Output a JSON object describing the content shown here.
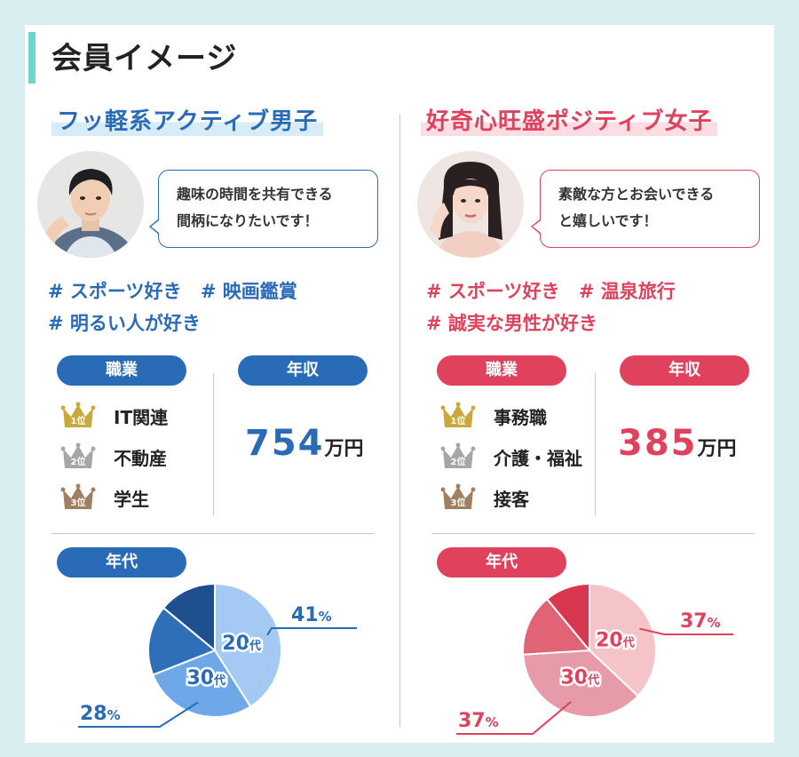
{
  "page_title": "会員イメージ",
  "male": {
    "heading": "フッ軽系アクティブ男子",
    "quote_line1": "趣味の時間を共有できる",
    "quote_line2": "間柄になりたいです！",
    "tags_line1": [
      "# スポーツ好き",
      "# 映画鑑賞"
    ],
    "tags_line2": [
      "# 明るい人が好き"
    ],
    "occupation_label": "職業",
    "income_label": "年収",
    "age_label": "年代",
    "ranks": [
      {
        "rank": "1位",
        "label": "IT関連"
      },
      {
        "rank": "2位",
        "label": "不動産"
      },
      {
        "rank": "3位",
        "label": "学生"
      }
    ],
    "income_value": "754",
    "income_unit": "万円",
    "accent_color": "#2a6bb8"
  },
  "female": {
    "heading": "好奇心旺盛ポジティブ女子",
    "quote_line1": "素敵な方とお会いできる",
    "quote_line2": "と嬉しいです！",
    "tags_line1": [
      "# スポーツ好き",
      "# 温泉旅行"
    ],
    "tags_line2": [
      "# 誠実な男性が好き"
    ],
    "occupation_label": "職業",
    "income_label": "年収",
    "age_label": "年代",
    "ranks": [
      {
        "rank": "1位",
        "label": "事務職"
      },
      {
        "rank": "2位",
        "label": "介護・福祉"
      },
      {
        "rank": "3位",
        "label": "接客"
      }
    ],
    "income_value": "385",
    "income_unit": "万円",
    "accent_color": "#e0415c"
  },
  "chart_data": [
    {
      "type": "pie",
      "title": "年代",
      "labels": [
        "20代",
        "30代",
        "",
        ""
      ],
      "values": [
        41,
        28,
        17,
        14
      ],
      "annotations": [
        "41%",
        "28%"
      ],
      "colors": [
        "#a4c9f2",
        "#6ea8e8",
        "#2f6fb7",
        "#1f4f8f"
      ]
    },
    {
      "type": "pie",
      "title": "年代",
      "labels": [
        "20代",
        "30代",
        "",
        ""
      ],
      "values": [
        37,
        37,
        15,
        11
      ],
      "annotations": [
        "37%",
        "37%"
      ],
      "colors": [
        "#f4c4c8",
        "#e79aa7",
        "#e06475",
        "#d9374f"
      ]
    }
  ],
  "crown_colors": [
    "#c9a93c",
    "#a6a6a6",
    "#a07f62"
  ]
}
